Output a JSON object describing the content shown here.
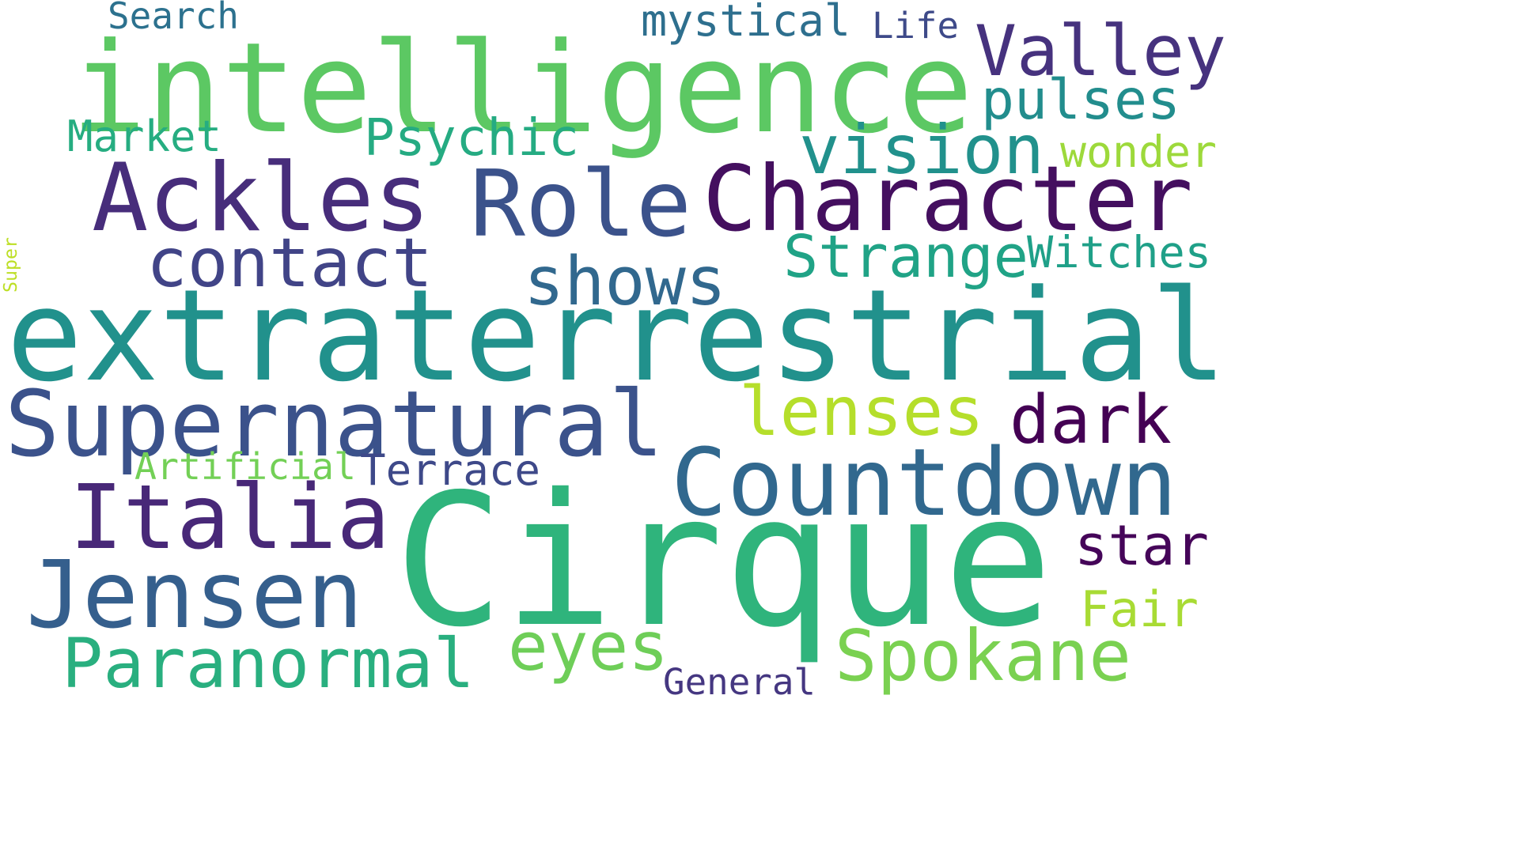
{
  "background": "#ffffff",
  "words": [
    {
      "text": "intelligence",
      "color": "#5cc863",
      "name": "word-intelligence"
    },
    {
      "text": "extraterrestrial",
      "color": "#21918c",
      "name": "word-extraterrestrial"
    },
    {
      "text": "Cirque",
      "color": "#2fb47c",
      "name": "word-cirque"
    },
    {
      "text": "Supernatural",
      "color": "#3b528b",
      "name": "word-supernatural"
    },
    {
      "text": "Character",
      "color": "#440f5f",
      "name": "word-character"
    },
    {
      "text": "Countdown",
      "color": "#31688e",
      "name": "word-countdown"
    },
    {
      "text": "Ackles",
      "color": "#472d7b",
      "name": "word-ackles"
    },
    {
      "text": "Role",
      "color": "#3b528b",
      "name": "word-role"
    },
    {
      "text": "Jensen",
      "color": "#355f8d",
      "name": "word-jensen"
    },
    {
      "text": "Italia",
      "color": "#482878",
      "name": "word-italia"
    },
    {
      "text": "Valley",
      "color": "#46327e",
      "name": "word-valley"
    },
    {
      "text": "Paranormal",
      "color": "#29af7f",
      "name": "word-paranormal"
    },
    {
      "text": "Spokane",
      "color": "#7ad151",
      "name": "word-spokane"
    },
    {
      "text": "vision",
      "color": "#21918c",
      "name": "word-vision"
    },
    {
      "text": "contact",
      "color": "#414487",
      "name": "word-contact"
    },
    {
      "text": "shows",
      "color": "#31688e",
      "name": "word-shows"
    },
    {
      "text": "lenses",
      "color": "#b5de2b",
      "name": "word-lenses"
    },
    {
      "text": "dark",
      "color": "#440154",
      "name": "word-dark"
    },
    {
      "text": "eyes",
      "color": "#6ece58",
      "name": "word-eyes"
    },
    {
      "text": "pulses",
      "color": "#228d8d",
      "name": "word-pulses"
    },
    {
      "text": "Strange",
      "color": "#20a386",
      "name": "word-strange"
    },
    {
      "text": "Psychic",
      "color": "#25ab82",
      "name": "word-psychic"
    },
    {
      "text": "star",
      "color": "#450559",
      "name": "word-star"
    },
    {
      "text": "Super",
      "color": "#bddf26",
      "name": "word-super"
    },
    {
      "text": "Witches",
      "color": "#1fa088",
      "name": "word-witches"
    },
    {
      "text": "Terrace",
      "color": "#3e4989",
      "name": "word-terrace"
    },
    {
      "text": "Market",
      "color": "#26ad81",
      "name": "word-market"
    },
    {
      "text": "Fair",
      "color": "#a8db34",
      "name": "word-fair"
    },
    {
      "text": "wonder",
      "color": "#9dd93b",
      "name": "word-wonder"
    },
    {
      "text": "mystical",
      "color": "#2e6f8e",
      "name": "word-mystical"
    },
    {
      "text": "Artificial",
      "color": "#73d056",
      "name": "word-artificial"
    },
    {
      "text": "General",
      "color": "#453781",
      "name": "word-general"
    },
    {
      "text": "Search",
      "color": "#2c718e",
      "name": "word-search"
    },
    {
      "text": "Life",
      "color": "#3e4a89",
      "name": "word-life"
    }
  ]
}
